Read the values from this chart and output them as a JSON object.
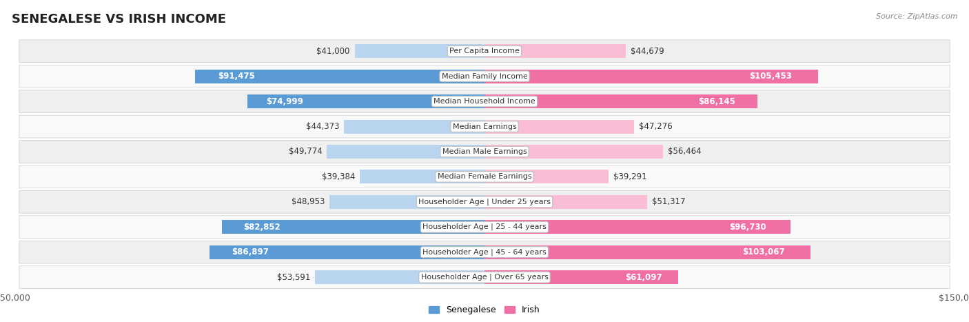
{
  "title": "SENEGALESE VS IRISH INCOME",
  "source": "Source: ZipAtlas.com",
  "categories": [
    "Per Capita Income",
    "Median Family Income",
    "Median Household Income",
    "Median Earnings",
    "Median Male Earnings",
    "Median Female Earnings",
    "Householder Age | Under 25 years",
    "Householder Age | 25 - 44 years",
    "Householder Age | 45 - 64 years",
    "Householder Age | Over 65 years"
  ],
  "senegalese_values": [
    41000,
    91475,
    74999,
    44373,
    49774,
    39384,
    48953,
    82852,
    86897,
    53591
  ],
  "irish_values": [
    44679,
    105453,
    86145,
    47276,
    56464,
    39291,
    51317,
    96730,
    103067,
    61097
  ],
  "senegalese_labels": [
    "$41,000",
    "$91,475",
    "$74,999",
    "$44,373",
    "$49,774",
    "$39,384",
    "$48,953",
    "$82,852",
    "$86,897",
    "$53,591"
  ],
  "irish_labels": [
    "$44,679",
    "$105,453",
    "$86,145",
    "$47,276",
    "$56,464",
    "$39,291",
    "$51,317",
    "$96,730",
    "$103,067",
    "$61,097"
  ],
  "max_value": 150000,
  "color_senegalese_dark": "#5b9bd5",
  "color_senegalese_light": "#b8d4ee",
  "color_irish_dark": "#f06fa4",
  "color_irish_light": "#f9bdd6",
  "row_bg_odd": "#efefef",
  "row_bg_even": "#f9f9f9",
  "bar_height": 0.55,
  "inside_threshold_s": 60000,
  "inside_threshold_ir": 60000,
  "label_fontsize": 8.5,
  "cat_fontsize": 8.0,
  "title_fontsize": 13,
  "source_fontsize": 8
}
